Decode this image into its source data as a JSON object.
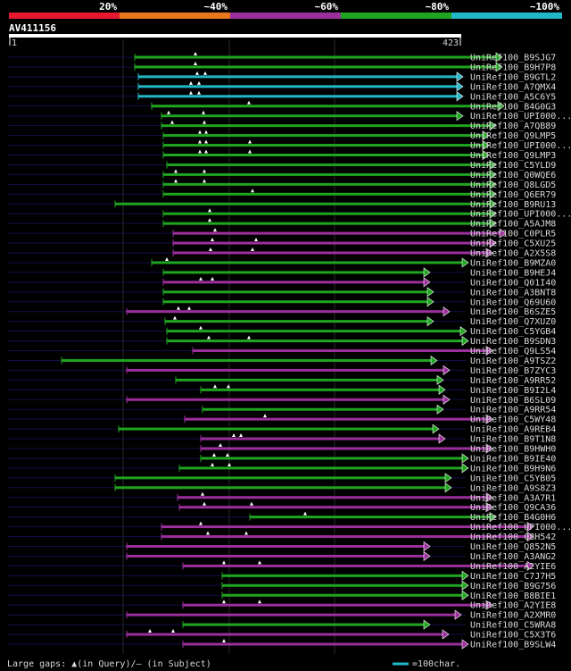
{
  "chart_data": {
    "type": "alignment",
    "title": "AV411156",
    "query_length": 423,
    "axis_start_label": "1",
    "axis_end_label": "423",
    "legend": {
      "bins": [
        {
          "label": "20%",
          "color": "#e6172f"
        },
        {
          "label": "~40%",
          "color": "#e8781e"
        },
        {
          "label": "~60%",
          "color": "#9b2f9c"
        },
        {
          "label": "~80%",
          "color": "#1fa51f"
        },
        {
          "label": "~100%",
          "color": "#22b7c6"
        }
      ]
    },
    "gridlines": [
      138,
      257,
      375
    ],
    "footer_left": "Large gaps: ▲(in Query)/— (in Subject)",
    "footer_right": "=100char.",
    "scale_length": 100,
    "hits": [
      {
        "name": "UniRef100_B9SJG7",
        "start": 151,
        "end": 563,
        "color": "#1fa51f",
        "gaps": [
          219
        ]
      },
      {
        "name": "UniRef100_B9H7P8",
        "start": 151,
        "end": 563,
        "color": "#1fa51f",
        "gaps": [
          219
        ]
      },
      {
        "name": "UniRef100_B9GTL2",
        "start": 155,
        "end": 519,
        "color": "#22b7c6",
        "gaps": [
          221,
          230
        ]
      },
      {
        "name": "UniRef100_A7QMX4",
        "start": 155,
        "end": 519,
        "color": "#22b7c6",
        "gaps": [
          214,
          223
        ]
      },
      {
        "name": "UniRef100_A5C6Y5",
        "start": 155,
        "end": 519,
        "color": "#22b7c6",
        "gaps": [
          214,
          223
        ]
      },
      {
        "name": "UniRef100_B4G0G3",
        "start": 170,
        "end": 565,
        "color": "#1fa51f",
        "gaps": [
          279
        ]
      },
      {
        "name": "UniRef100_UPI000...",
        "start": 181,
        "end": 519,
        "color": "#1fa51f",
        "gaps": [
          189,
          228
        ]
      },
      {
        "name": "UniRef100_A7QB89",
        "start": 181,
        "end": 556,
        "color": "#1fa51f",
        "gaps": [
          193,
          229
        ]
      },
      {
        "name": "UniRef100_Q9LMP5",
        "start": 183,
        "end": 548,
        "color": "#1fa51f",
        "gaps": [
          224,
          231
        ]
      },
      {
        "name": "UniRef100_UPI000...",
        "start": 183,
        "end": 548,
        "color": "#1fa51f",
        "gaps": [
          224,
          231,
          280
        ]
      },
      {
        "name": "UniRef100_Q9LMP3",
        "start": 183,
        "end": 548,
        "color": "#1fa51f",
        "gaps": [
          224,
          231,
          280
        ]
      },
      {
        "name": "UniRef100_C5YLD9",
        "start": 187,
        "end": 556,
        "color": "#1fa51f",
        "gaps": []
      },
      {
        "name": "UniRef100_Q0WQE6",
        "start": 183,
        "end": 556,
        "color": "#1fa51f",
        "gaps": [
          197,
          229
        ]
      },
      {
        "name": "UniRef100_Q8LGD5",
        "start": 183,
        "end": 556,
        "color": "#1fa51f",
        "gaps": [
          197,
          229
        ]
      },
      {
        "name": "UniRef100_Q6ER79",
        "start": 183,
        "end": 556,
        "color": "#1fa51f",
        "gaps": [
          283
        ]
      },
      {
        "name": "UniRef100_B9RU13",
        "start": 129,
        "end": 556,
        "color": "#1fa51f",
        "gaps": []
      },
      {
        "name": "UniRef100_UPI000...",
        "start": 183,
        "end": 556,
        "color": "#1fa51f",
        "gaps": [
          235
        ]
      },
      {
        "name": "UniRef100_A5AJM8",
        "start": 183,
        "end": 556,
        "color": "#1fa51f",
        "gaps": [
          235
        ]
      },
      {
        "name": "UniRef100_C0PLR5",
        "start": 194,
        "end": 567,
        "color": "#9b2f9c",
        "gaps": [
          241
        ]
      },
      {
        "name": "UniRef100_C5XU25",
        "start": 194,
        "end": 556,
        "color": "#9b2f9c",
        "gaps": [
          238,
          287
        ]
      },
      {
        "name": "UniRef100_A2X5S8",
        "start": 194,
        "end": 552,
        "color": "#9b2f9c",
        "gaps": [
          236,
          283
        ]
      },
      {
        "name": "UniRef100_B9MZA0",
        "start": 170,
        "end": 525,
        "color": "#1fa51f",
        "gaps": [
          187
        ]
      },
      {
        "name": "UniRef100_B9HEJ4",
        "start": 183,
        "end": 482,
        "color": "#1fa51f",
        "gaps": []
      },
      {
        "name": "UniRef100_Q01I40",
        "start": 183,
        "end": 482,
        "color": "#9b2f9c",
        "gaps": [
          225,
          238
        ]
      },
      {
        "name": "UniRef100_A3BNT8",
        "start": 183,
        "end": 486,
        "color": "#1fa51f",
        "gaps": []
      },
      {
        "name": "UniRef100_Q69U60",
        "start": 183,
        "end": 486,
        "color": "#1fa51f",
        "gaps": []
      },
      {
        "name": "UniRef100_B6SZE5",
        "start": 142,
        "end": 504,
        "color": "#9b2f9c",
        "gaps": [
          200,
          212
        ]
      },
      {
        "name": "UniRef100_Q7XUZ0",
        "start": 185,
        "end": 486,
        "color": "#1fa51f",
        "gaps": [
          196
        ]
      },
      {
        "name": "UniRef100_C5YGB4",
        "start": 187,
        "end": 523,
        "color": "#1fa51f",
        "gaps": [
          225
        ]
      },
      {
        "name": "UniRef100_B9SDN3",
        "start": 187,
        "end": 525,
        "color": "#1fa51f",
        "gaps": [
          234,
          279
        ]
      },
      {
        "name": "UniRef100_Q9LS54",
        "start": 216,
        "end": 552,
        "color": "#9b2f9c",
        "gaps": []
      },
      {
        "name": "UniRef100_A9TSZ2",
        "start": 69,
        "end": 490,
        "color": "#1fa51f",
        "gaps": []
      },
      {
        "name": "UniRef100_B7ZYC3",
        "start": 142,
        "end": 504,
        "color": "#9b2f9c",
        "gaps": []
      },
      {
        "name": "UniRef100_A9RR52",
        "start": 197,
        "end": 497,
        "color": "#1fa51f",
        "gaps": []
      },
      {
        "name": "UniRef100_B9I2L4",
        "start": 225,
        "end": 499,
        "color": "#1fa51f",
        "gaps": [
          241,
          256
        ]
      },
      {
        "name": "UniRef100_B6SL09",
        "start": 142,
        "end": 504,
        "color": "#9b2f9c",
        "gaps": []
      },
      {
        "name": "UniRef100_A9RR54",
        "start": 227,
        "end": 497,
        "color": "#1fa51f",
        "gaps": []
      },
      {
        "name": "UniRef100_C5WY48",
        "start": 207,
        "end": 552,
        "color": "#9b2f9c",
        "gaps": [
          297
        ]
      },
      {
        "name": "UniRef100_A9REB4",
        "start": 133,
        "end": 492,
        "color": "#1fa51f",
        "gaps": []
      },
      {
        "name": "UniRef100_B9T1N8",
        "start": 225,
        "end": 499,
        "color": "#9b2f9c",
        "gaps": [
          262,
          270
        ]
      },
      {
        "name": "UniRef100_B9HWH0",
        "start": 225,
        "end": 552,
        "color": "#9b2f9c",
        "gaps": [
          247
        ]
      },
      {
        "name": "UniRef100_B9IE40",
        "start": 225,
        "end": 525,
        "color": "#1fa51f",
        "gaps": [
          240,
          255
        ]
      },
      {
        "name": "UniRef100_B9H9N6",
        "start": 201,
        "end": 525,
        "color": "#1fa51f",
        "gaps": [
          238,
          257
        ]
      },
      {
        "name": "UniRef100_C5YB05",
        "start": 129,
        "end": 506,
        "color": "#1fa51f",
        "gaps": []
      },
      {
        "name": "UniRef100_A9S8Z3",
        "start": 129,
        "end": 506,
        "color": "#1fa51f",
        "gaps": []
      },
      {
        "name": "UniRef100_A3A7R1",
        "start": 199,
        "end": 552,
        "color": "#9b2f9c",
        "gaps": [
          227
        ]
      },
      {
        "name": "UniRef100_Q9CA36",
        "start": 201,
        "end": 552,
        "color": "#9b2f9c",
        "gaps": [
          229,
          282
        ]
      },
      {
        "name": "UniRef100_B4G0H6",
        "start": 280,
        "end": 556,
        "color": "#1fa51f",
        "gaps": [
          342
        ]
      },
      {
        "name": "UniRef100_UPI000...",
        "start": 181,
        "end": 598,
        "color": "#9b2f9c",
        "gaps": [
          225
        ]
      },
      {
        "name": "UniRef100_Q8H542",
        "start": 181,
        "end": 598,
        "color": "#9b2f9c",
        "gaps": [
          233,
          276
        ]
      },
      {
        "name": "UniRef100_Q852N5",
        "start": 142,
        "end": 482,
        "color": "#9b2f9c",
        "gaps": []
      },
      {
        "name": "UniRef100_A3ANG2",
        "start": 142,
        "end": 482,
        "color": "#9b2f9c",
        "gaps": []
      },
      {
        "name": "UniRef100_A2YIE6",
        "start": 205,
        "end": 598,
        "color": "#9b2f9c",
        "gaps": [
          251,
          291
        ]
      },
      {
        "name": "UniRef100_C7J7H5",
        "start": 249,
        "end": 525,
        "color": "#1fa51f",
        "gaps": []
      },
      {
        "name": "UniRef100_B9G756",
        "start": 249,
        "end": 525,
        "color": "#1fa51f",
        "gaps": []
      },
      {
        "name": "UniRef100_B8BIE1",
        "start": 249,
        "end": 525,
        "color": "#1fa51f",
        "gaps": []
      },
      {
        "name": "UniRef100_A2YIE8",
        "start": 205,
        "end": 552,
        "color": "#9b2f9c",
        "gaps": [
          251,
          291
        ]
      },
      {
        "name": "UniRef100_A2XMR0",
        "start": 142,
        "end": 517,
        "color": "#9b2f9c",
        "gaps": []
      },
      {
        "name": "UniRef100_C5WRA8",
        "start": 205,
        "end": 482,
        "color": "#1fa51f",
        "gaps": []
      },
      {
        "name": "UniRef100_C5X3T6",
        "start": 142,
        "end": 503,
        "color": "#9b2f9c",
        "gaps": [
          168,
          194
        ]
      },
      {
        "name": "UniRef100_B9SLW4",
        "start": 205,
        "end": 525,
        "color": "#9b2f9c",
        "gaps": [
          251
        ]
      }
    ]
  }
}
